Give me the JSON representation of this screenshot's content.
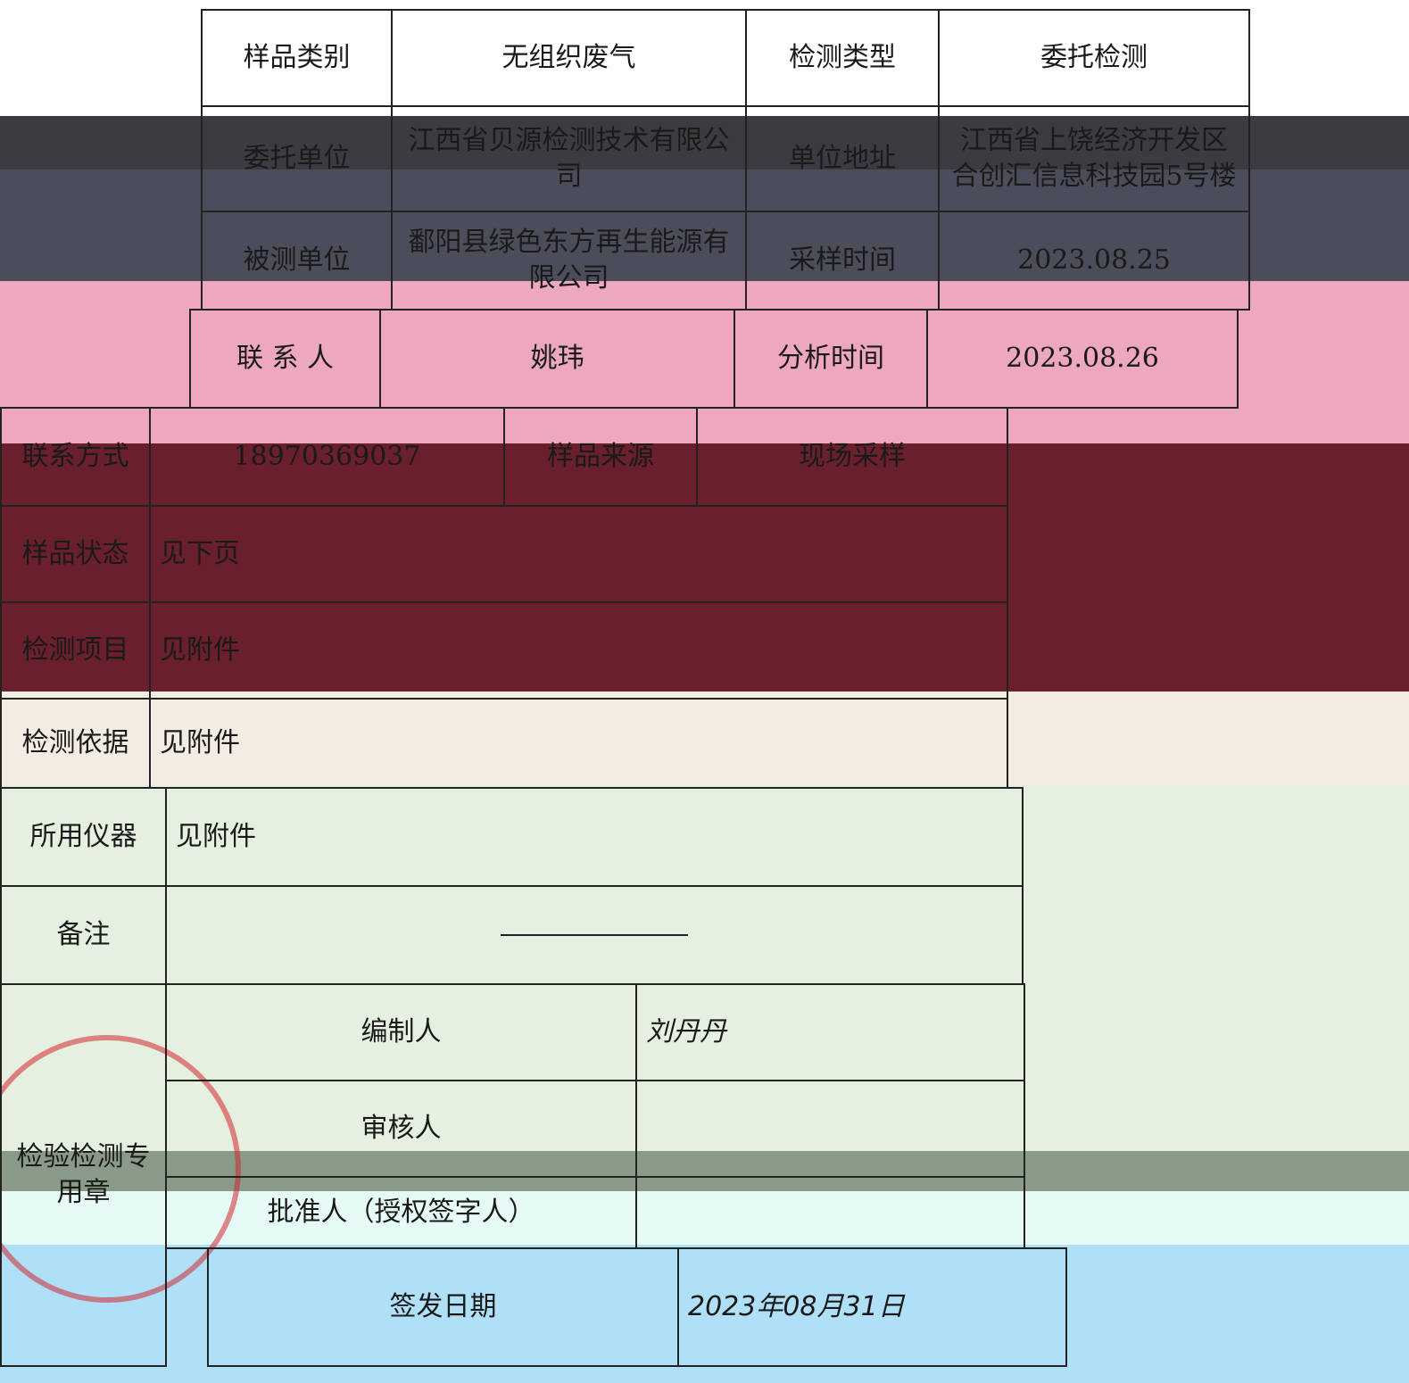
{
  "rows": [
    {
      "cells": [
        "样品类别",
        "无组织废气",
        "检测类型",
        "委托检测"
      ]
    },
    {
      "cells": [
        "委托单位",
        "江西省贝源检测技术有限公司",
        "单位地址",
        "江西省上饶经济开发区合创汇信息科技园5号楼"
      ]
    },
    {
      "cells": [
        "被测单位",
        "鄱阳县绿色东方再生能源有限公司",
        "采样时间",
        "2023.08.25"
      ]
    },
    {
      "cells": [
        "联 系 人",
        "姚玮",
        "分析时间",
        "2023.08.26"
      ]
    },
    {
      "cells": [
        "联系方式",
        "18970369037",
        "样品来源",
        "现场采样"
      ]
    },
    {
      "cells": [
        "样品状态",
        "见下页"
      ]
    },
    {
      "cells": [
        "检测项目",
        "见附件"
      ]
    },
    {
      "cells": [
        "检测依据",
        "见附件"
      ]
    },
    {
      "cells": [
        "所用仪器",
        "见附件"
      ]
    },
    {
      "cells": [
        "备注"
      ]
    },
    {
      "cells": [
        "编制人",
        "刘丹丹"
      ]
    },
    {
      "cells": [
        "审核人"
      ]
    },
    {
      "cells": [
        "批准人（授权签字人）"
      ]
    },
    {
      "cells": [
        "签发日期",
        "2023年08月31日"
      ]
    }
  ],
  "stamp": "检验检测专用章"
}
